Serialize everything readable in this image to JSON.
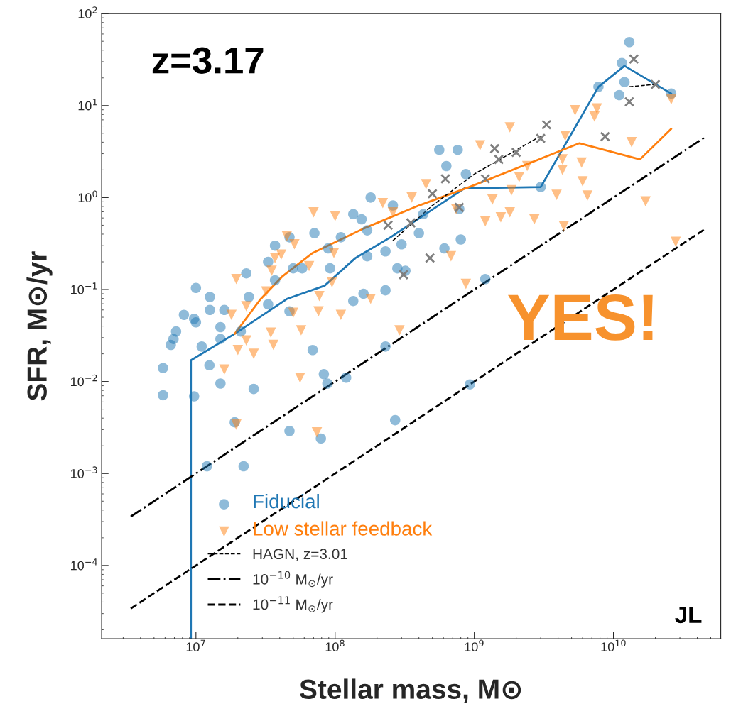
{
  "chart_data": {
    "type": "scatter",
    "xlabel": "Stellar mass, M⊙",
    "ylabel": "SFR, M⊙/yr",
    "log": "xy",
    "xlim": [
      2100000.0,
      59000000000.0
    ],
    "ylim": [
      1.6e-05,
      100
    ],
    "xticks": [
      {
        "value": 10000000.0,
        "label": "10$^{7}$"
      },
      {
        "value": 100000000.0,
        "label": "10$^{8}$"
      },
      {
        "value": 1000000000.0,
        "label": "10$^{9}$"
      },
      {
        "value": 10000000000.0,
        "label": "10$^{10}$"
      }
    ],
    "yticks": [
      {
        "value": 0.0001,
        "label": "10$^{−4}$"
      },
      {
        "value": 0.001,
        "label": "10$^{−3}$"
      },
      {
        "value": 0.01,
        "label": "10$^{−2}$"
      },
      {
        "value": 0.1,
        "label": "10$^{−1}$"
      },
      {
        "value": 1,
        "label": "10$^{0}$"
      },
      {
        "value": 10,
        "label": "10$^{1}$"
      },
      {
        "value": 100,
        "label": "10$^{2}$"
      }
    ],
    "legend": "bottom left",
    "annotations": [
      "z=3.17",
      "YES!",
      "JL"
    ],
    "series": [
      {
        "name": "Fiducial",
        "marker": "circle",
        "color": "#1f77b4",
        "x": [
          5800000.0,
          5800000.0,
          6600000.0,
          7200000.0,
          6900000.0,
          8200000.0,
          9700000.0,
          10000000.0,
          9700000.0,
          10000000.0,
          11000000.0,
          12000000.0,
          12500000.0,
          12600000.0,
          12600000.0,
          15000000.0,
          15000000.0,
          15000000.0,
          16000000.0,
          21000000.0,
          22000000.0,
          19000000.0,
          26000000.0,
          23000000.0,
          24000000.0,
          33000000.0,
          37000000.0,
          37000000.0,
          33000000.0,
          47000000.0,
          47000000.0,
          50000000.0,
          47000000.0,
          58000000.0,
          69000000.0,
          79000000.0,
          83000000.0,
          88000000.0,
          71000000.0,
          89000000.0,
          92000000.0,
          120000000.0,
          135000000.0,
          135000000.0,
          160000000.0,
          170000000.0,
          170000000.0,
          230000000.0,
          260000000.0,
          230000000.0,
          230000000.0,
          280000000.0,
          270000000.0,
          300000000.0,
          320000000.0,
          400000000.0,
          560000000.0,
          760000000.0,
          610000000.0,
          630000000.0,
          800000000.0,
          930000000.0,
          1200000000.0,
          3000000000.0,
          7800000000.0,
          11500000000.0,
          13000000000.0,
          12000000000.0,
          11000000000.0,
          26000000000.0,
          430000000.0,
          870000000.0,
          780000000.0,
          155000000.0,
          110000000.0,
          180000000.0
        ],
        "values": [
          0.014,
          0.0071,
          0.025,
          0.035,
          0.029,
          0.053,
          0.0069,
          0.104,
          0.048,
          0.044,
          0.024,
          0.0012,
          0.015,
          0.083,
          0.06,
          0.029,
          0.0095,
          0.039,
          0.06,
          0.035,
          0.0012,
          0.0036,
          0.0083,
          0.15,
          0.083,
          0.2,
          0.3,
          0.126,
          0.069,
          0.0029,
          0.37,
          0.17,
          0.058,
          0.17,
          0.022,
          0.0024,
          0.012,
          0.0095,
          0.41,
          0.28,
          0.17,
          0.011,
          0.075,
          0.66,
          0.09,
          0.23,
          0.44,
          0.26,
          0.82,
          0.098,
          0.024,
          0.17,
          0.0038,
          0.31,
          0.16,
          0.41,
          3.3,
          3.3,
          0.28,
          2.2,
          0.35,
          0.0093,
          0.13,
          1.3,
          16,
          29,
          49,
          18,
          13,
          13.5,
          0.66,
          1.8,
          0.75,
          0.58,
          0.37,
          1.0
        ]
      },
      {
        "type": "line",
        "color": "#1f77b4",
        "x": [
          9200000.0,
          9200000.0,
          19000000.0,
          45000000.0,
          84000000.0,
          140000000.0,
          250000000.0,
          850000000.0,
          3000000000.0,
          7800000000.0,
          12000000000.0,
          26000000000.0
        ],
        "values": [
          1.6e-05,
          0.017,
          0.033,
          0.079,
          0.11,
          0.22,
          0.37,
          1.26,
          1.3,
          16,
          27,
          13.5
        ]
      },
      {
        "name": "Low stellar feedback",
        "marker": "triangle",
        "color": "#ff7f0e",
        "x": [
          16000000.0,
          18000000.0,
          19500000.0,
          20000000.0,
          23000000.0,
          26000000.0,
          19500000.0,
          23000000.0,
          35000000.0,
          32000000.0,
          37000000.0,
          41000000.0,
          34500000.0,
          36000000.0,
          45000000.0,
          51000000.0,
          50000000.0,
          56000000.0,
          74000000.0,
          57000000.0,
          65000000.0,
          76000000.0,
          77000000.0,
          70000000.0,
          100000000.0,
          98000000.0,
          95000000.0,
          110000000.0,
          180000000.0,
          290000000.0,
          220000000.0,
          260000000.0,
          355000000.0,
          450000000.0,
          740000000.0,
          1200000000.0,
          1350000000.0,
          1550000000.0,
          1800000000.0,
          1850000000.0,
          2100000000.0,
          2400000000.0,
          2700000000.0,
          1800000000.0,
          3900000000.0,
          4300000000.0,
          4300000000.0,
          4500000000.0,
          6000000000.0,
          5900000000.0,
          6500000000.0,
          7600000000.0,
          7300000000.0,
          5300000000.0,
          13500000000.0,
          17000000000.0,
          26000000000.0,
          28000000000.0,
          4400000000.0,
          870000000.0,
          680000000.0,
          1100000000.0
        ],
        "values": [
          0.0135,
          0.053,
          0.0034,
          0.022,
          0.028,
          0.02,
          0.13,
          0.066,
          0.16,
          0.095,
          0.22,
          0.24,
          0.034,
          0.025,
          0.38,
          0.31,
          0.056,
          0.011,
          0.0028,
          0.036,
          0.18,
          0.058,
          0.085,
          0.69,
          0.63,
          0.25,
          0.12,
          0.053,
          0.079,
          0.036,
          0.87,
          0.69,
          1.0,
          1.4,
          0.75,
          0.55,
          0.95,
          0.61,
          0.69,
          1.2,
          1.67,
          2.2,
          0.58,
          5.8,
          1.07,
          2.0,
          2.6,
          4.7,
          1.5,
          2.4,
          1.05,
          9.3,
          7.6,
          8.9,
          4.0,
          0.91,
          11.7,
          0.33,
          0.49,
          0.115,
          0.23,
          3.7
        ]
      },
      {
        "type": "line",
        "color": "#ff7f0e",
        "x": [
          19000000.0,
          29000000.0,
          42000000.0,
          69000000.0,
          160000000.0,
          400000000.0,
          920000000.0,
          5700000000.0,
          15500000000.0,
          26000000000.0
        ],
        "values": [
          0.033,
          0.078,
          0.14,
          0.25,
          0.46,
          0.82,
          1.3,
          3.9,
          2.6,
          5.6
        ]
      },
      {
        "marker": "cross",
        "color": "#7f7f7f",
        "x": [
          14000000000.0,
          13000000000.0,
          20000000000.0,
          8700000000.0,
          3300000000.0,
          3000000000.0,
          2000000000.0,
          1400000000.0,
          1500000000.0,
          1200000000.0,
          620000000.0,
          500000000.0,
          780000000.0,
          350000000.0,
          240000000.0,
          480000000.0,
          310000000.0
        ],
        "values": [
          32,
          11,
          17,
          4.6,
          6.2,
          4.4,
          3.1,
          3.4,
          2.6,
          1.6,
          1.6,
          1.1,
          0.78,
          0.53,
          0.5,
          0.22,
          0.145
        ]
      },
      {
        "name": "HAGN, z=3.01",
        "type": "line",
        "line_style": "dashed",
        "color": "#000000",
        "x": [
          260000000.0,
          500000000.0,
          1000000000.0,
          3100000000.0,
          6000000000.0,
          13000000000.0,
          20000000000.0
        ],
        "values": [
          0.34,
          0.82,
          1.8,
          4.8,
          null,
          16,
          17
        ]
      },
      {
        "name": "10$^{−10}$ M$_{⊙}$/yr",
        "type": "line",
        "line_style": "dashdot",
        "color": "#000000",
        "x": [
          3400000.0,
          45000000000.0
        ],
        "values": [
          0.00034,
          4.5
        ]
      },
      {
        "name": "10$^{−11}$ M$_{⊙}$/yr",
        "type": "line",
        "line_style": "dashed",
        "color": "#000000",
        "x": [
          3400000.0,
          45000000000.0
        ],
        "values": [
          3.4e-05,
          0.45
        ]
      }
    ]
  }
}
